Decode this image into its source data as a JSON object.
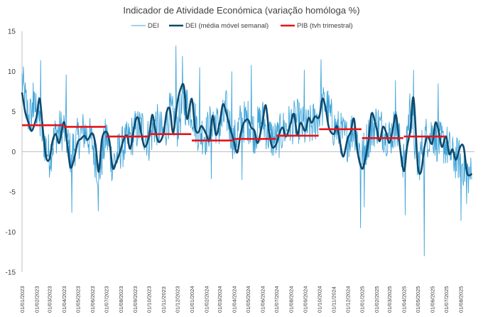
{
  "chart_data": {
    "type": "line",
    "title": "Indicador de Atividade Económica (variação homóloga %)",
    "xlabel": "",
    "ylabel": "",
    "ylim": [
      -15,
      15
    ],
    "yticks": [
      15,
      10,
      5,
      0,
      -5,
      -10,
      -15
    ],
    "x_range": [
      "01/01/2023",
      "31/08/2025"
    ],
    "x_tick_labels": [
      "01/01/2023",
      "01/02/2023",
      "01/03/2023",
      "01/04/2023",
      "01/05/2023",
      "01/06/2023",
      "01/07/2023",
      "01/08/2023",
      "01/09/2023",
      "01/10/2023",
      "01/11/2023",
      "01/12/2023",
      "01/01/2024",
      "01/02/2024",
      "01/03/2024",
      "01/04/2024",
      "01/05/2024",
      "01/06/2024",
      "01/07/2024",
      "01/08/2024",
      "01/09/2024",
      "01/10/2024",
      "01/11/2024",
      "01/12/2024",
      "01/01/2025",
      "01/02/2025",
      "01/03/2025",
      "01/04/2025",
      "01/05/2025",
      "01/06/2025",
      "01/07/2025",
      "01/08/2025"
    ],
    "grid": false,
    "legend_position": "top",
    "series": [
      {
        "name": "DEI",
        "kind": "daily",
        "color": "#41a5d9",
        "points": [
          [
            "01/01/2023",
            8.9
          ],
          [
            "15/01/2023",
            4.2
          ],
          [
            "01/02/2023",
            5.6
          ],
          [
            "15/02/2023",
            1.8
          ],
          [
            "01/03/2023",
            -0.6
          ],
          [
            "15/03/2023",
            2.4
          ],
          [
            "01/04/2023",
            2.9
          ],
          [
            "15/04/2023",
            -0.3
          ],
          [
            "01/05/2023",
            1.6
          ],
          [
            "15/05/2023",
            2.6
          ],
          [
            "01/06/2023",
            1.2
          ],
          [
            "15/06/2023",
            -2.8
          ],
          [
            "01/07/2023",
            2.1
          ],
          [
            "15/07/2023",
            -1.6
          ],
          [
            "01/08/2023",
            0.4
          ],
          [
            "15/08/2023",
            1.1
          ],
          [
            "01/09/2023",
            2.6
          ],
          [
            "15/09/2023",
            3.1
          ],
          [
            "01/10/2023",
            1.4
          ],
          [
            "15/10/2023",
            3.6
          ],
          [
            "01/11/2023",
            2.0
          ],
          [
            "15/11/2023",
            4.9
          ],
          [
            "01/12/2023",
            3.2
          ],
          [
            "15/12/2023",
            6.1
          ],
          [
            "01/01/2024",
            5.2
          ],
          [
            "15/01/2024",
            2.6
          ],
          [
            "01/02/2024",
            2.1
          ],
          [
            "15/02/2024",
            4.3
          ],
          [
            "01/03/2024",
            2.8
          ],
          [
            "15/03/2024",
            5.1
          ],
          [
            "01/04/2024",
            1.1
          ],
          [
            "15/04/2024",
            3.6
          ],
          [
            "01/05/2024",
            3.9
          ],
          [
            "15/05/2024",
            2.3
          ],
          [
            "01/06/2024",
            4.1
          ],
          [
            "15/06/2024",
            2.0
          ],
          [
            "01/07/2024",
            1.3
          ],
          [
            "15/07/2024",
            2.6
          ],
          [
            "01/08/2024",
            3.5
          ],
          [
            "15/08/2024",
            3.9
          ],
          [
            "01/09/2024",
            2.7
          ],
          [
            "15/09/2024",
            3.3
          ],
          [
            "01/10/2024",
            4.6
          ],
          [
            "15/10/2024",
            6.2
          ],
          [
            "01/11/2024",
            3.1
          ],
          [
            "15/11/2024",
            2.4
          ],
          [
            "01/12/2024",
            1.5
          ],
          [
            "15/12/2024",
            3.2
          ],
          [
            "01/01/2025",
            -0.8
          ],
          [
            "15/01/2025",
            1.9
          ],
          [
            "01/02/2025",
            3.6
          ],
          [
            "15/02/2025",
            2.7
          ],
          [
            "01/03/2025",
            1.8
          ],
          [
            "15/03/2025",
            3.1
          ],
          [
            "01/04/2025",
            -1.2
          ],
          [
            "15/04/2025",
            5.8
          ],
          [
            "01/05/2025",
            -1.9
          ],
          [
            "15/05/2025",
            1.6
          ],
          [
            "01/06/2025",
            2.4
          ],
          [
            "15/06/2025",
            1.1
          ],
          [
            "01/07/2025",
            0.9
          ],
          [
            "15/07/2025",
            -0.7
          ],
          [
            "01/08/2025",
            -1.0
          ],
          [
            "15/08/2025",
            -2.6
          ],
          [
            "25/08/2025",
            -3.1
          ]
        ],
        "extremes": [
          [
            "03/01/2023",
            9.0
          ],
          [
            "25/01/2023",
            8.6
          ],
          [
            "10/02/2023",
            11.4
          ],
          [
            "06/04/2023",
            9.6
          ],
          [
            "18/04/2023",
            -7.6
          ],
          [
            "14/06/2023",
            -7.4
          ],
          [
            "28/11/2023",
            13.2
          ],
          [
            "12/12/2023",
            11.9
          ],
          [
            "18/01/2024",
            10.5
          ],
          [
            "12/02/2024",
            -3.4
          ],
          [
            "27/03/2024",
            10.0
          ],
          [
            "18/04/2024",
            -3.5
          ],
          [
            "08/05/2024",
            10.8
          ],
          [
            "30/08/2024",
            10.2
          ],
          [
            "05/10/2024",
            11.5
          ],
          [
            "29/12/2024",
            -9.5
          ],
          [
            "06/01/2025",
            -6.9
          ],
          [
            "14/03/2025",
            8.9
          ],
          [
            "04/04/2025",
            -7.9
          ],
          [
            "22/04/2025",
            10.2
          ],
          [
            "15/05/2025",
            -13.0
          ],
          [
            "14/06/2025",
            8.5
          ],
          [
            "02/08/2025",
            -8.6
          ],
          [
            "14/08/2025",
            -6.5
          ]
        ]
      },
      {
        "name": "DEI (média móvel semanal)",
        "kind": "moving-average",
        "color": "#0e4a6e",
        "points": [
          [
            "01/01/2023",
            7.4
          ],
          [
            "08/01/2023",
            4.9
          ],
          [
            "15/01/2023",
            3.6
          ],
          [
            "22/01/2023",
            2.6
          ],
          [
            "01/02/2023",
            4.3
          ],
          [
            "08/02/2023",
            6.6
          ],
          [
            "15/02/2023",
            2.6
          ],
          [
            "22/02/2023",
            -0.7
          ],
          [
            "01/03/2023",
            -0.9
          ],
          [
            "08/03/2023",
            1.4
          ],
          [
            "15/03/2023",
            2.2
          ],
          [
            "22/03/2023",
            1.1
          ],
          [
            "01/04/2023",
            3.7
          ],
          [
            "08/04/2023",
            1.1
          ],
          [
            "15/04/2023",
            -1.9
          ],
          [
            "22/04/2023",
            -1.1
          ],
          [
            "01/05/2023",
            1.2
          ],
          [
            "08/05/2023",
            1.6
          ],
          [
            "15/05/2023",
            2.0
          ],
          [
            "22/05/2023",
            1.5
          ],
          [
            "01/06/2023",
            2.3
          ],
          [
            "08/06/2023",
            0.9
          ],
          [
            "15/06/2023",
            -2.5
          ],
          [
            "22/06/2023",
            1.6
          ],
          [
            "01/07/2023",
            2.5
          ],
          [
            "08/07/2023",
            1.3
          ],
          [
            "15/07/2023",
            -2.0
          ],
          [
            "22/07/2023",
            -1.4
          ],
          [
            "01/08/2023",
            0.2
          ],
          [
            "08/08/2023",
            1.6
          ],
          [
            "15/08/2023",
            2.0
          ],
          [
            "22/08/2023",
            0.4
          ],
          [
            "01/09/2023",
            3.6
          ],
          [
            "08/09/2023",
            4.2
          ],
          [
            "15/09/2023",
            2.1
          ],
          [
            "22/09/2023",
            0.6
          ],
          [
            "01/10/2023",
            1.9
          ],
          [
            "08/10/2023",
            4.6
          ],
          [
            "15/10/2023",
            2.6
          ],
          [
            "22/10/2023",
            1.2
          ],
          [
            "01/11/2023",
            2.2
          ],
          [
            "08/11/2023",
            4.9
          ],
          [
            "15/11/2023",
            5.3
          ],
          [
            "22/11/2023",
            2.4
          ],
          [
            "01/12/2023",
            6.1
          ],
          [
            "08/12/2023",
            7.8
          ],
          [
            "15/12/2023",
            8.2
          ],
          [
            "22/12/2023",
            4.1
          ],
          [
            "01/01/2024",
            6.6
          ],
          [
            "08/01/2024",
            3.0
          ],
          [
            "15/01/2024",
            2.4
          ],
          [
            "22/01/2024",
            3.2
          ],
          [
            "01/02/2024",
            2.2
          ],
          [
            "08/02/2024",
            1.4
          ],
          [
            "15/02/2024",
            4.5
          ],
          [
            "22/02/2024",
            2.1
          ],
          [
            "01/03/2024",
            3.6
          ],
          [
            "08/03/2024",
            5.9
          ],
          [
            "15/03/2024",
            4.9
          ],
          [
            "22/03/2024",
            3.3
          ],
          [
            "01/04/2024",
            1.2
          ],
          [
            "08/04/2024",
            -0.1
          ],
          [
            "15/04/2024",
            2.2
          ],
          [
            "22/04/2024",
            3.6
          ],
          [
            "01/05/2024",
            4.0
          ],
          [
            "08/05/2024",
            3.0
          ],
          [
            "15/05/2024",
            2.6
          ],
          [
            "22/05/2024",
            1.1
          ],
          [
            "01/06/2024",
            3.6
          ],
          [
            "08/06/2024",
            5.8
          ],
          [
            "15/06/2024",
            2.6
          ],
          [
            "22/06/2024",
            0.6
          ],
          [
            "01/07/2024",
            1.0
          ],
          [
            "08/07/2024",
            2.4
          ],
          [
            "15/07/2024",
            3.0
          ],
          [
            "22/07/2024",
            1.9
          ],
          [
            "01/08/2024",
            3.6
          ],
          [
            "08/08/2024",
            4.7
          ],
          [
            "15/08/2024",
            2.1
          ],
          [
            "22/08/2024",
            3.6
          ],
          [
            "01/09/2024",
            2.6
          ],
          [
            "08/09/2024",
            4.2
          ],
          [
            "15/09/2024",
            3.6
          ],
          [
            "22/09/2024",
            4.4
          ],
          [
            "01/10/2024",
            4.3
          ],
          [
            "08/10/2024",
            6.6
          ],
          [
            "15/10/2024",
            5.4
          ],
          [
            "22/10/2024",
            3.0
          ],
          [
            "01/11/2024",
            2.2
          ],
          [
            "08/11/2024",
            3.2
          ],
          [
            "15/11/2024",
            1.1
          ],
          [
            "22/11/2024",
            -0.6
          ],
          [
            "01/12/2024",
            1.6
          ],
          [
            "08/12/2024",
            2.5
          ],
          [
            "15/12/2024",
            4.1
          ],
          [
            "22/12/2024",
            0.2
          ],
          [
            "01/01/2025",
            -2.1
          ],
          [
            "08/01/2025",
            -0.9
          ],
          [
            "15/01/2025",
            1.4
          ],
          [
            "22/01/2025",
            4.8
          ],
          [
            "01/02/2025",
            3.0
          ],
          [
            "08/02/2025",
            1.3
          ],
          [
            "15/02/2025",
            3.1
          ],
          [
            "22/02/2025",
            2.4
          ],
          [
            "01/03/2025",
            1.1
          ],
          [
            "08/03/2025",
            2.7
          ],
          [
            "15/03/2025",
            4.6
          ],
          [
            "22/03/2025",
            1.4
          ],
          [
            "01/04/2025",
            -2.4
          ],
          [
            "08/04/2025",
            0.6
          ],
          [
            "15/04/2025",
            2.7
          ],
          [
            "22/04/2025",
            6.7
          ],
          [
            "01/05/2025",
            -1.6
          ],
          [
            "08/05/2025",
            -2.5
          ],
          [
            "15/05/2025",
            0.4
          ],
          [
            "22/05/2025",
            1.9
          ],
          [
            "01/06/2025",
            1.0
          ],
          [
            "08/06/2025",
            3.6
          ],
          [
            "15/06/2025",
            2.6
          ],
          [
            "22/06/2025",
            0.6
          ],
          [
            "01/07/2025",
            1.9
          ],
          [
            "08/07/2025",
            -0.3
          ],
          [
            "15/07/2025",
            0.3
          ],
          [
            "22/07/2025",
            -1.0
          ],
          [
            "01/08/2025",
            0.7
          ],
          [
            "08/08/2025",
            0.5
          ],
          [
            "15/08/2025",
            -2.6
          ],
          [
            "22/08/2025",
            -2.9
          ],
          [
            "25/08/2025",
            -2.7
          ]
        ]
      },
      {
        "name": "PIB (tvh trimestral)",
        "kind": "quarterly-steps",
        "color": "#e8141a",
        "segments": [
          {
            "from": "01/01/2023",
            "to": "31/03/2023",
            "value": 3.3
          },
          {
            "from": "01/04/2023",
            "to": "30/06/2023",
            "value": 3.1
          },
          {
            "from": "01/07/2023",
            "to": "30/09/2023",
            "value": 1.9
          },
          {
            "from": "01/10/2023",
            "to": "31/12/2023",
            "value": 2.2
          },
          {
            "from": "01/01/2024",
            "to": "31/03/2024",
            "value": 1.4
          },
          {
            "from": "01/04/2024",
            "to": "30/06/2024",
            "value": 1.6
          },
          {
            "from": "01/07/2024",
            "to": "30/09/2024",
            "value": 2.0
          },
          {
            "from": "01/10/2024",
            "to": "31/12/2024",
            "value": 2.8
          },
          {
            "from": "01/01/2025",
            "to": "31/03/2025",
            "value": 1.7
          },
          {
            "from": "01/04/2025",
            "to": "30/06/2025",
            "value": 1.9
          }
        ]
      }
    ]
  }
}
